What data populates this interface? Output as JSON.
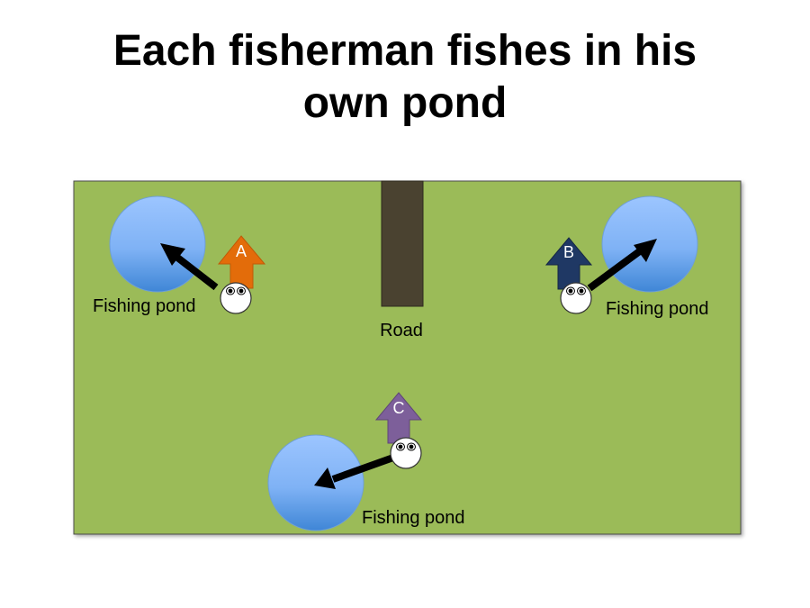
{
  "slide": {
    "title_line1": "Each fisherman fishes in his",
    "title_line2": "own pond"
  },
  "field": {
    "color": "#9bbb59",
    "road_label": "Road",
    "road_color": "#4a4230"
  },
  "ponds": [
    {
      "label": "Fishing pond"
    },
    {
      "label": "Fishing pond"
    },
    {
      "label": "Fishing pond"
    }
  ],
  "fishermen": [
    {
      "letter": "A",
      "color": "#e36c0a"
    },
    {
      "letter": "B",
      "color": "#1f3864"
    },
    {
      "letter": "C",
      "color": "#7d5f9a"
    }
  ],
  "pond_color_top": "#9cc5ff",
  "pond_color_bottom": "#3f86d6"
}
